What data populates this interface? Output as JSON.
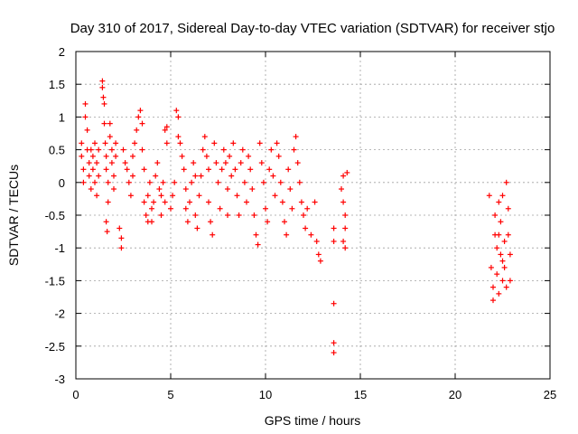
{
  "chart_data": {
    "type": "scatter",
    "title": "Day 310 of 2017, Sidereal Day-to-day VTEC variation (SDTVAR) for receiver stjo",
    "xlabel": "GPS time / hours",
    "ylabel": "SDTVAR / TECUs",
    "xlim": [
      0,
      25
    ],
    "ylim": [
      -3,
      2
    ],
    "xticks": [
      "0",
      "5",
      "10",
      "15",
      "20",
      "25"
    ],
    "yticks": [
      "2",
      "1.5",
      "1",
      "0.5",
      "0",
      "-0.5",
      "-1",
      "-1.5",
      "-2",
      "-2.5",
      "-3"
    ],
    "grid": true,
    "marker": "+",
    "color": "#ff0000",
    "series": [
      {
        "name": "SDTVAR",
        "points": [
          [
            0.3,
            0.6
          ],
          [
            0.3,
            0.4
          ],
          [
            0.4,
            0.2
          ],
          [
            0.4,
            0.0
          ],
          [
            0.5,
            1.2
          ],
          [
            0.5,
            1.0
          ],
          [
            0.6,
            0.8
          ],
          [
            0.6,
            0.5
          ],
          [
            0.7,
            0.3
          ],
          [
            0.7,
            0.1
          ],
          [
            0.8,
            -0.1
          ],
          [
            0.8,
            0.5
          ],
          [
            0.9,
            0.4
          ],
          [
            0.9,
            0.2
          ],
          [
            1.0,
            0.6
          ],
          [
            1.0,
            0.0
          ],
          [
            1.1,
            -0.2
          ],
          [
            1.1,
            0.3
          ],
          [
            1.2,
            0.1
          ],
          [
            1.2,
            0.5
          ],
          [
            1.4,
            1.55
          ],
          [
            1.4,
            1.45
          ],
          [
            1.45,
            1.3
          ],
          [
            1.5,
            1.2
          ],
          [
            1.5,
            0.9
          ],
          [
            1.55,
            0.6
          ],
          [
            1.6,
            0.4
          ],
          [
            1.6,
            0.2
          ],
          [
            1.7,
            0.0
          ],
          [
            1.7,
            -0.3
          ],
          [
            1.8,
            0.7
          ],
          [
            1.8,
            0.9
          ],
          [
            1.9,
            0.5
          ],
          [
            1.9,
            0.3
          ],
          [
            2.0,
            0.1
          ],
          [
            2.0,
            -0.1
          ],
          [
            2.1,
            0.6
          ],
          [
            2.1,
            0.4
          ],
          [
            1.6,
            -0.6
          ],
          [
            1.65,
            -0.75
          ],
          [
            2.3,
            -0.7
          ],
          [
            2.4,
            -0.85
          ],
          [
            2.4,
            -1.0
          ],
          [
            2.5,
            0.5
          ],
          [
            2.6,
            0.3
          ],
          [
            2.7,
            0.2
          ],
          [
            2.8,
            0.0
          ],
          [
            2.9,
            -0.2
          ],
          [
            3.0,
            0.4
          ],
          [
            3.0,
            0.1
          ],
          [
            3.1,
            0.6
          ],
          [
            3.2,
            0.8
          ],
          [
            3.3,
            1.0
          ],
          [
            3.4,
            1.1
          ],
          [
            3.5,
            0.9
          ],
          [
            3.5,
            0.5
          ],
          [
            3.6,
            0.2
          ],
          [
            3.6,
            -0.3
          ],
          [
            3.7,
            -0.5
          ],
          [
            3.8,
            -0.6
          ],
          [
            3.8,
            -0.2
          ],
          [
            3.9,
            0.0
          ],
          [
            4.0,
            -0.4
          ],
          [
            4.0,
            -0.6
          ],
          [
            4.1,
            -0.3
          ],
          [
            4.2,
            0.1
          ],
          [
            4.3,
            0.3
          ],
          [
            4.4,
            -0.1
          ],
          [
            4.5,
            -0.5
          ],
          [
            4.5,
            -0.2
          ],
          [
            4.6,
            0.0
          ],
          [
            4.7,
            -0.3
          ],
          [
            4.7,
            0.8
          ],
          [
            4.8,
            0.85
          ],
          [
            4.8,
            0.6
          ],
          [
            5.0,
            -0.4
          ],
          [
            5.1,
            -0.2
          ],
          [
            5.2,
            0.0
          ],
          [
            5.3,
            1.1
          ],
          [
            5.4,
            1.0
          ],
          [
            5.4,
            0.7
          ],
          [
            5.5,
            0.6
          ],
          [
            5.6,
            0.4
          ],
          [
            5.7,
            0.2
          ],
          [
            5.8,
            -0.1
          ],
          [
            5.8,
            -0.4
          ],
          [
            5.9,
            -0.6
          ],
          [
            6.0,
            -0.3
          ],
          [
            6.1,
            0.0
          ],
          [
            6.2,
            0.3
          ],
          [
            6.3,
            0.1
          ],
          [
            6.3,
            -0.5
          ],
          [
            6.4,
            -0.7
          ],
          [
            6.5,
            -0.2
          ],
          [
            6.6,
            0.1
          ],
          [
            6.7,
            0.5
          ],
          [
            6.8,
            0.7
          ],
          [
            6.9,
            0.4
          ],
          [
            7.0,
            0.2
          ],
          [
            7.0,
            -0.3
          ],
          [
            7.1,
            -0.6
          ],
          [
            7.2,
            -0.8
          ],
          [
            7.3,
            0.6
          ],
          [
            7.4,
            0.3
          ],
          [
            7.5,
            0.0
          ],
          [
            7.6,
            -0.4
          ],
          [
            7.7,
            0.2
          ],
          [
            7.8,
            0.5
          ],
          [
            7.9,
            0.3
          ],
          [
            8.0,
            -0.1
          ],
          [
            8.0,
            -0.5
          ],
          [
            8.1,
            0.4
          ],
          [
            8.2,
            0.1
          ],
          [
            8.3,
            0.6
          ],
          [
            8.4,
            0.2
          ],
          [
            8.5,
            -0.2
          ],
          [
            8.6,
            -0.5
          ],
          [
            8.7,
            0.3
          ],
          [
            8.8,
            0.5
          ],
          [
            8.9,
            0.0
          ],
          [
            9.0,
            -0.3
          ],
          [
            9.1,
            0.4
          ],
          [
            9.2,
            0.2
          ],
          [
            9.3,
            -0.1
          ],
          [
            9.4,
            -0.5
          ],
          [
            9.5,
            -0.8
          ],
          [
            9.6,
            -0.95
          ],
          [
            9.7,
            0.6
          ],
          [
            9.8,
            0.3
          ],
          [
            9.9,
            0.0
          ],
          [
            10.0,
            -0.4
          ],
          [
            10.1,
            -0.6
          ],
          [
            10.2,
            0.2
          ],
          [
            10.3,
            0.5
          ],
          [
            10.4,
            0.1
          ],
          [
            10.5,
            -0.2
          ],
          [
            10.6,
            0.6
          ],
          [
            10.7,
            0.4
          ],
          [
            10.8,
            0.0
          ],
          [
            10.9,
            -0.3
          ],
          [
            11.0,
            -0.6
          ],
          [
            11.1,
            -0.8
          ],
          [
            11.2,
            0.2
          ],
          [
            11.3,
            -0.1
          ],
          [
            11.4,
            -0.4
          ],
          [
            11.5,
            0.5
          ],
          [
            11.6,
            0.7
          ],
          [
            11.7,
            0.3
          ],
          [
            11.8,
            0.0
          ],
          [
            11.9,
            -0.3
          ],
          [
            12.0,
            -0.5
          ],
          [
            12.1,
            -0.7
          ],
          [
            12.2,
            -0.4
          ],
          [
            12.4,
            -0.8
          ],
          [
            12.6,
            -0.3
          ],
          [
            12.7,
            -0.9
          ],
          [
            12.8,
            -1.1
          ],
          [
            12.9,
            -1.2
          ],
          [
            13.6,
            -0.7
          ],
          [
            13.6,
            -0.9
          ],
          [
            13.6,
            -1.85
          ],
          [
            13.6,
            -2.45
          ],
          [
            13.6,
            -2.6
          ],
          [
            14.0,
            -0.1
          ],
          [
            14.1,
            0.1
          ],
          [
            14.1,
            -0.3
          ],
          [
            14.2,
            -0.5
          ],
          [
            14.2,
            -0.7
          ],
          [
            14.1,
            -0.9
          ],
          [
            14.2,
            -1.0
          ],
          [
            14.3,
            0.15
          ],
          [
            21.8,
            -0.2
          ],
          [
            21.9,
            -1.3
          ],
          [
            22.0,
            -1.6
          ],
          [
            22.0,
            -1.8
          ],
          [
            22.1,
            -0.5
          ],
          [
            22.1,
            -0.8
          ],
          [
            22.2,
            -1.0
          ],
          [
            22.2,
            -1.4
          ],
          [
            22.3,
            -1.7
          ],
          [
            22.3,
            -0.3
          ],
          [
            22.4,
            -0.6
          ],
          [
            22.4,
            -1.1
          ],
          [
            22.5,
            -1.5
          ],
          [
            22.5,
            -0.2
          ],
          [
            22.6,
            -0.9
          ],
          [
            22.6,
            -1.3
          ],
          [
            22.7,
            -1.6
          ],
          [
            22.7,
            0.0
          ],
          [
            22.8,
            -0.4
          ],
          [
            22.8,
            -0.8
          ],
          [
            22.9,
            -1.1
          ],
          [
            22.9,
            -1.5
          ],
          [
            22.5,
            -1.2
          ],
          [
            22.3,
            -0.8
          ]
        ]
      }
    ]
  }
}
